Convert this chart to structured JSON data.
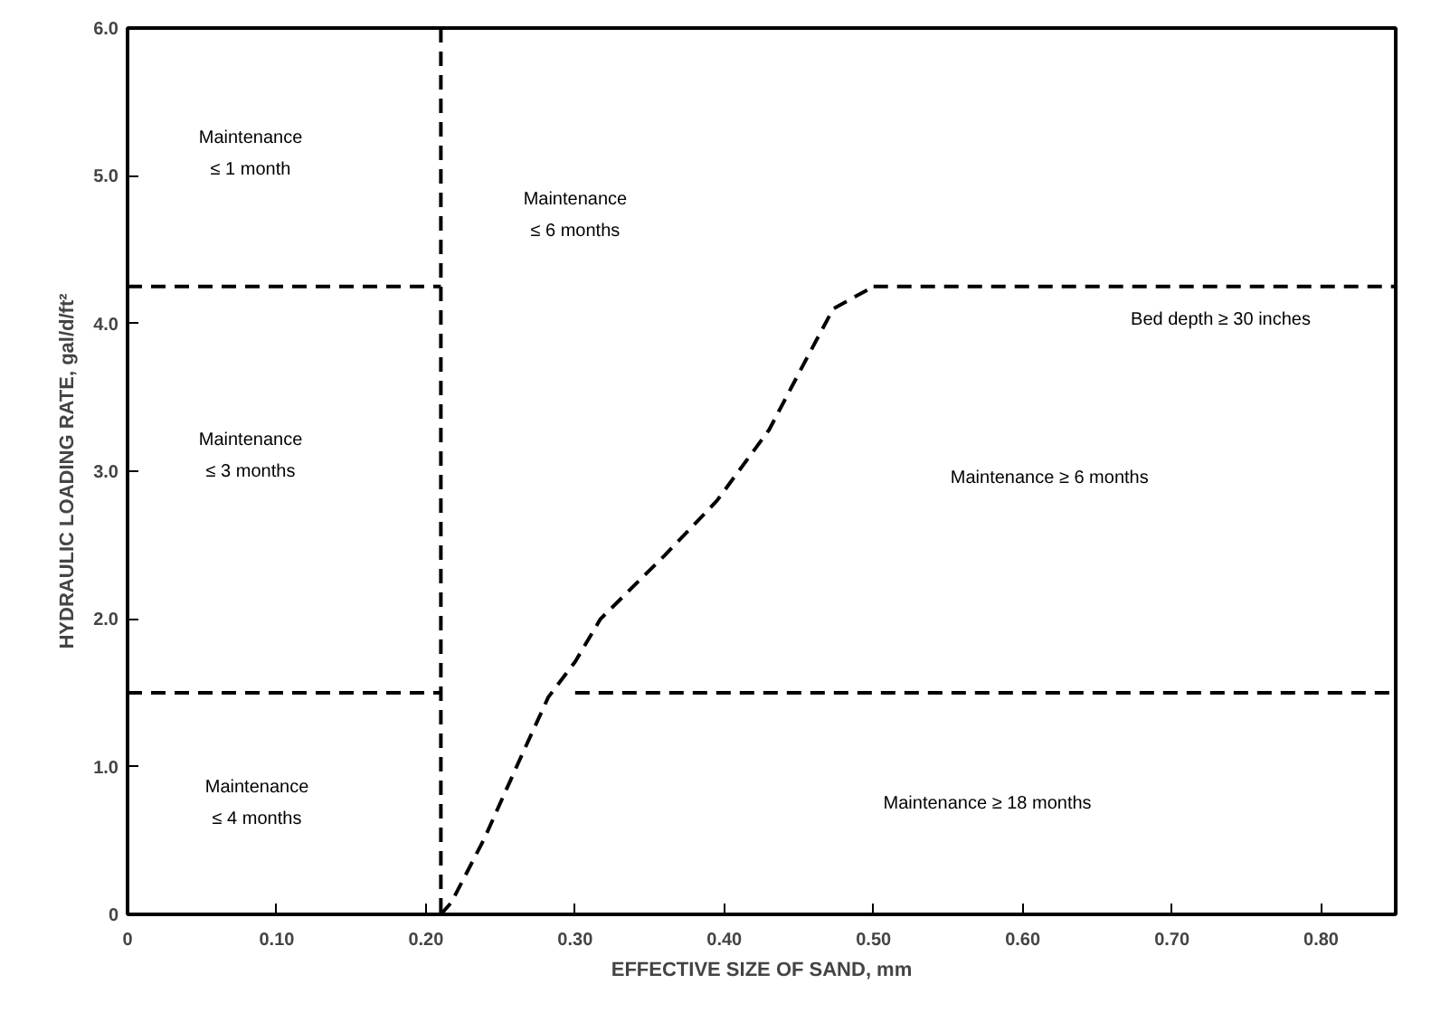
{
  "chart_data": {
    "type": "line",
    "xlabel": "EFFECTIVE SIZE OF SAND, mm",
    "ylabel": "HYDRAULIC LOADING RATE, gal/d/ft²",
    "xlim": [
      0,
      0.85
    ],
    "ylim": [
      0,
      6
    ],
    "xticks": [
      0,
      {
        "value": 0.1,
        "label": "0.10"
      },
      {
        "value": 0.2,
        "label": "0.20"
      },
      {
        "value": 0.3,
        "label": "0.30"
      },
      {
        "value": 0.4,
        "label": "0.40"
      },
      {
        "value": 0.5,
        "label": "0.50"
      },
      {
        "value": 0.6,
        "label": "0.60"
      },
      {
        "value": 0.7,
        "label": "0.70"
      },
      {
        "value": 0.8,
        "label": "0.80"
      }
    ],
    "yticks": [
      0,
      {
        "value": 1,
        "label": "1.0"
      },
      {
        "value": 2,
        "label": "2.0"
      },
      {
        "value": 3,
        "label": "3.0"
      },
      {
        "value": 4,
        "label": "4.0"
      },
      {
        "value": 5,
        "label": "5.0"
      },
      {
        "value": 6,
        "label": "6.0"
      }
    ],
    "series": [
      {
        "color": "#000000",
        "x": [
          0.21,
          0.21
        ],
        "values": [
          6,
          0
        ]
      },
      {
        "color": "#000000",
        "x": [
          0,
          0.21
        ],
        "values": [
          4.25,
          4.25
        ]
      },
      {
        "color": "#000000",
        "x": [
          0,
          0.21
        ],
        "values": [
          1.5,
          1.5
        ]
      },
      {
        "color": "#000000",
        "x": [
          0.21,
          0.217,
          0.239,
          0.263,
          0.282,
          0.3,
          0.317,
          0.36,
          0.395,
          0.43,
          0.455,
          0.473,
          0.5
        ],
        "values": [
          0,
          0.08,
          0.51,
          1.05,
          1.47,
          1.71,
          2.0,
          2.43,
          2.8,
          3.28,
          3.76,
          4.1,
          4.25
        ]
      },
      {
        "color": "#000000",
        "x": [
          0.5,
          0.85
        ],
        "values": [
          4.25,
          4.25
        ]
      },
      {
        "color": "#000000",
        "x": [
          0.3,
          0.85
        ],
        "values": [
          1.5,
          1.5
        ]
      }
    ],
    "annotations": [
      "Maintenance\n≤ 1 month",
      "Maintenance\n≤ 3 months",
      "Maintenance\n≤ 4 months",
      "Maintenance\n≤ 6 months",
      "Bed depth ≥ 30 inches",
      "Maintenance ≥ 6 months",
      "Maintenance ≥ 18 months"
    ],
    "line_style": "dashed",
    "marker": "none",
    "grid": false
  }
}
